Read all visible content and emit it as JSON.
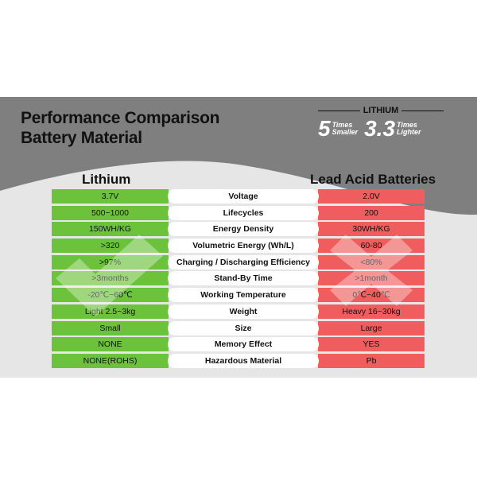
{
  "header": {
    "title_line1": "Performance Comparison",
    "title_line2": "Battery Material"
  },
  "badge": {
    "label": "LITHIUM",
    "stat1_value": "5",
    "stat1_top": "Times",
    "stat1_bottom": "Smaller",
    "stat2_value": "3.3",
    "stat2_top": "Times",
    "stat2_bottom": "Lighter"
  },
  "columns": {
    "left": "Lithium",
    "right": "Lead Acid Batteries"
  },
  "colors": {
    "lithium": "#6cc23a",
    "lead_acid": "#ef5d5e",
    "header_band": "#7f7f7f"
  },
  "icons": {
    "left": "check-mark-icon",
    "right": "x-mark-icon"
  },
  "rows": [
    {
      "lithium": "3.7V",
      "metric": "Voltage",
      "lead": "2.0V"
    },
    {
      "lithium": "500~1000",
      "metric": "Lifecycles",
      "lead": "200"
    },
    {
      "lithium": "150WH/KG",
      "metric": "Energy Density",
      "lead": "30WH/KG"
    },
    {
      "lithium": ">320",
      "metric": "Volumetric Energy (Wh/L)",
      "lead": "60-80"
    },
    {
      "lithium": ">97%",
      "metric": "Charging / Discharging Efficiency",
      "lead": "<80%"
    },
    {
      "lithium": ">3months",
      "metric": "Stand-By Time",
      "lead": ">1month"
    },
    {
      "lithium": "-20℃~60℃",
      "metric": "Working Temperature",
      "lead": "0℃~40℃"
    },
    {
      "lithium": "Light 2.5~3kg",
      "metric": "Weight",
      "lead": "Heavy 16~30kg"
    },
    {
      "lithium": "Small",
      "metric": "Size",
      "lead": "Large"
    },
    {
      "lithium": "NONE",
      "metric": "Memory Effect",
      "lead": "YES"
    },
    {
      "lithium": "NONE(ROHS)",
      "metric": "Hazardous Material",
      "lead": "Pb"
    }
  ]
}
